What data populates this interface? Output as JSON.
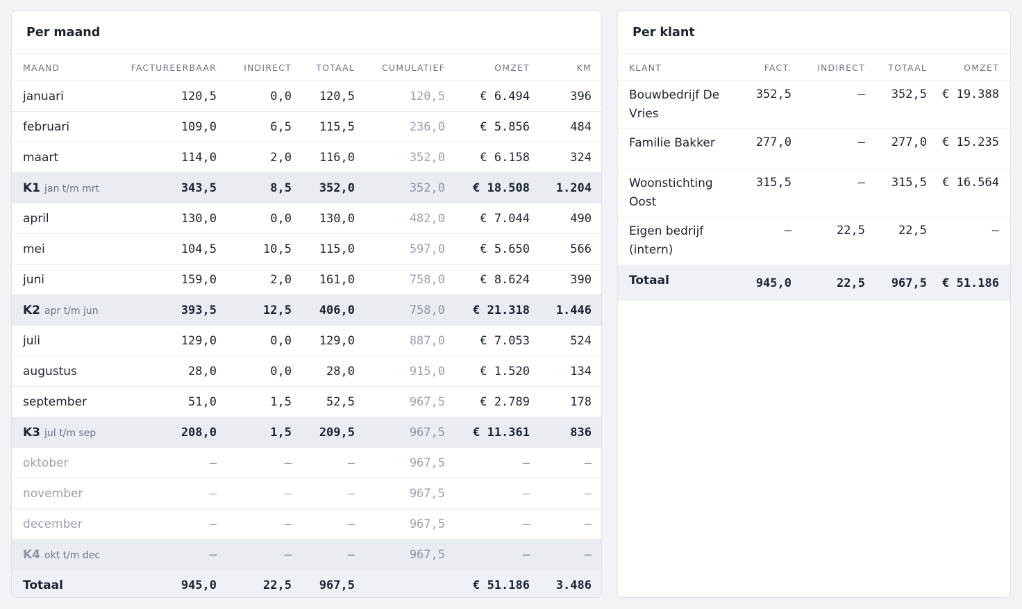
{
  "maand": {
    "title": "Per maand",
    "headers": [
      "MAAND",
      "FACTUREERBAAR",
      "INDIRECT",
      "TOTAAL",
      "CUMULATIEF",
      "OMZET",
      "KM"
    ],
    "rows": [
      {
        "name": "januari",
        "fact": "120,5",
        "ind": "0,0",
        "tot": "120,5",
        "cum": "120,5",
        "omzet": "€ 6.494",
        "km": "396"
      },
      {
        "name": "februari",
        "fact": "109,0",
        "ind": "6,5",
        "tot": "115,5",
        "cum": "236,0",
        "omzet": "€ 5.856",
        "km": "484"
      },
      {
        "name": "maart",
        "fact": "114,0",
        "ind": "2,0",
        "tot": "116,0",
        "cum": "352,0",
        "omzet": "€ 6.158",
        "km": "324"
      },
      {
        "name": "K1",
        "range": "jan t/m mrt",
        "fact": "343,5",
        "ind": "8,5",
        "tot": "352,0",
        "cum": "352,0",
        "omzet": "€ 18.508",
        "km": "1.204"
      },
      {
        "name": "april",
        "fact": "130,0",
        "ind": "0,0",
        "tot": "130,0",
        "cum": "482,0",
        "omzet": "€ 7.044",
        "km": "490"
      },
      {
        "name": "mei",
        "fact": "104,5",
        "ind": "10,5",
        "tot": "115,0",
        "cum": "597,0",
        "omzet": "€ 5.650",
        "km": "566"
      },
      {
        "name": "juni",
        "fact": "159,0",
        "ind": "2,0",
        "tot": "161,0",
        "cum": "758,0",
        "omzet": "€ 8.624",
        "km": "390"
      },
      {
        "name": "K2",
        "range": "apr t/m jun",
        "fact": "393,5",
        "ind": "12,5",
        "tot": "406,0",
        "cum": "758,0",
        "omzet": "€ 21.318",
        "km": "1.446"
      },
      {
        "name": "juli",
        "fact": "129,0",
        "ind": "0,0",
        "tot": "129,0",
        "cum": "887,0",
        "omzet": "€ 7.053",
        "km": "524"
      },
      {
        "name": "augustus",
        "fact": "28,0",
        "ind": "0,0",
        "tot": "28,0",
        "cum": "915,0",
        "omzet": "€ 1.520",
        "km": "134"
      },
      {
        "name": "september",
        "fact": "51,0",
        "ind": "1,5",
        "tot": "52,5",
        "cum": "967,5",
        "omzet": "€ 2.789",
        "km": "178"
      },
      {
        "name": "K3",
        "range": "jul t/m sep",
        "fact": "208,0",
        "ind": "1,5",
        "tot": "209,5",
        "cum": "967,5",
        "omzet": "€ 11.361",
        "km": "836"
      },
      {
        "name": "oktober",
        "fact": "–",
        "ind": "–",
        "tot": "–",
        "cum": "967,5",
        "omzet": "–",
        "km": "–"
      },
      {
        "name": "november",
        "fact": "–",
        "ind": "–",
        "tot": "–",
        "cum": "967,5",
        "omzet": "–",
        "km": "–"
      },
      {
        "name": "december",
        "fact": "–",
        "ind": "–",
        "tot": "–",
        "cum": "967,5",
        "omzet": "–",
        "km": "–"
      },
      {
        "name": "K4",
        "range": "okt t/m dec",
        "fact": "–",
        "ind": "–",
        "tot": "–",
        "cum": "967,5",
        "omzet": "–",
        "km": "–"
      }
    ],
    "total": {
      "name": "Totaal",
      "fact": "945,0",
      "ind": "22,5",
      "tot": "967,5",
      "cum": "",
      "omzet": "€ 51.186",
      "km": "3.486"
    }
  },
  "klant": {
    "title": "Per klant",
    "headers": [
      "KLANT",
      "FACT.",
      "INDIRECT",
      "TOTAAL",
      "OMZET"
    ],
    "rows": [
      {
        "name": "Bouwbedrijf De Vries",
        "fact": "352,5",
        "ind": "–",
        "tot": "352,5",
        "omzet": "€ 19.388"
      },
      {
        "name": "Familie Bakker",
        "fact": "277,0",
        "ind": "–",
        "tot": "277,0",
        "omzet": "€ 15.235"
      },
      {
        "name": "Woonstichting Oost",
        "fact": "315,5",
        "ind": "–",
        "tot": "315,5",
        "omzet": "€ 16.564"
      },
      {
        "name": "Eigen bedrijf (intern)",
        "fact": "–",
        "ind": "22,5",
        "tot": "22,5",
        "omzet": "–"
      }
    ],
    "total": {
      "name": "Totaal",
      "fact": "945,0",
      "ind": "22,5",
      "tot": "967,5",
      "omzet": "€ 51.186"
    }
  }
}
